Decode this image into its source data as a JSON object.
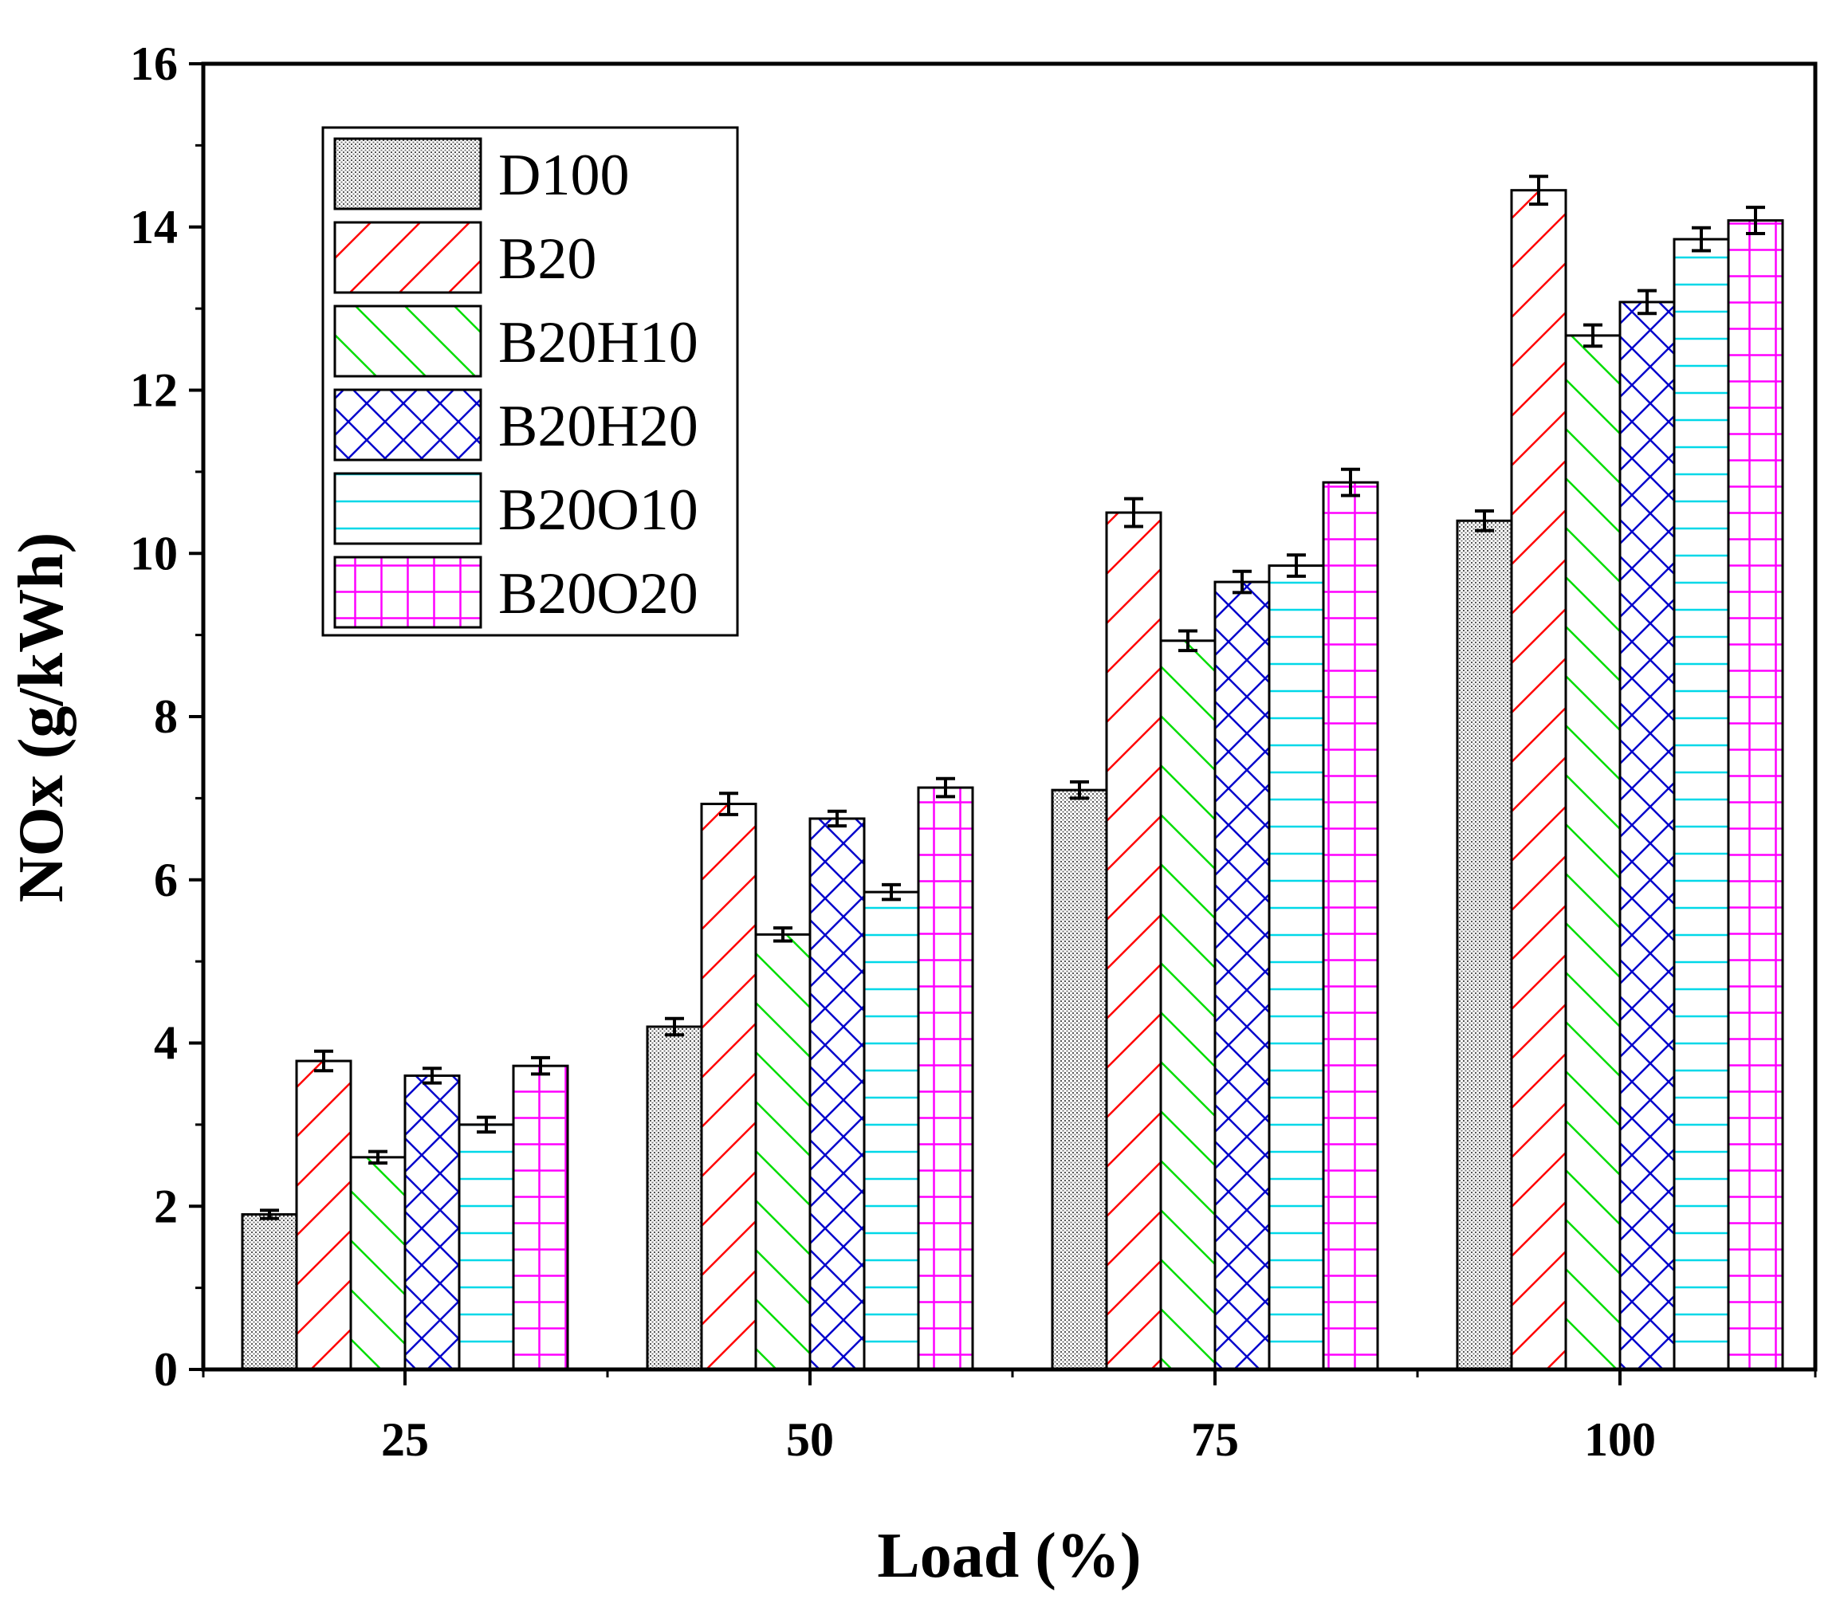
{
  "chart_data": {
    "type": "bar",
    "title": "",
    "xlabel": "Load (%)",
    "ylabel": "NOx (g/kWh)",
    "ylim": [
      0,
      16
    ],
    "yticks": [
      0,
      2,
      4,
      6,
      8,
      10,
      12,
      14,
      16
    ],
    "categories": [
      "25",
      "50",
      "75",
      "100"
    ],
    "legend_position": "top-left",
    "series": [
      {
        "name": "D100",
        "pattern": "dots",
        "color": "#555555",
        "values": [
          1.9,
          4.2,
          7.1,
          10.4
        ],
        "errors": [
          0.05,
          0.1,
          0.1,
          0.12
        ]
      },
      {
        "name": "B20",
        "pattern": "diag-right",
        "color": "#ff0000",
        "values": [
          3.78,
          6.93,
          10.5,
          14.45
        ],
        "errors": [
          0.12,
          0.13,
          0.17,
          0.17
        ]
      },
      {
        "name": "B20H10",
        "pattern": "diag-left",
        "color": "#00dd00",
        "values": [
          2.6,
          5.33,
          8.93,
          12.67
        ],
        "errors": [
          0.07,
          0.08,
          0.12,
          0.13
        ]
      },
      {
        "name": "B20H20",
        "pattern": "cross",
        "color": "#0000cc",
        "values": [
          3.6,
          6.75,
          9.65,
          13.08
        ],
        "errors": [
          0.09,
          0.09,
          0.13,
          0.14
        ]
      },
      {
        "name": "B20O10",
        "pattern": "horizontal",
        "color": "#00d8e8",
        "values": [
          3.0,
          5.85,
          9.85,
          13.85
        ],
        "errors": [
          0.09,
          0.09,
          0.13,
          0.14
        ]
      },
      {
        "name": "B20O20",
        "pattern": "grid",
        "color": "#ff00ff",
        "values": [
          3.72,
          7.13,
          10.87,
          14.08
        ],
        "errors": [
          0.1,
          0.11,
          0.16,
          0.16
        ]
      }
    ]
  }
}
